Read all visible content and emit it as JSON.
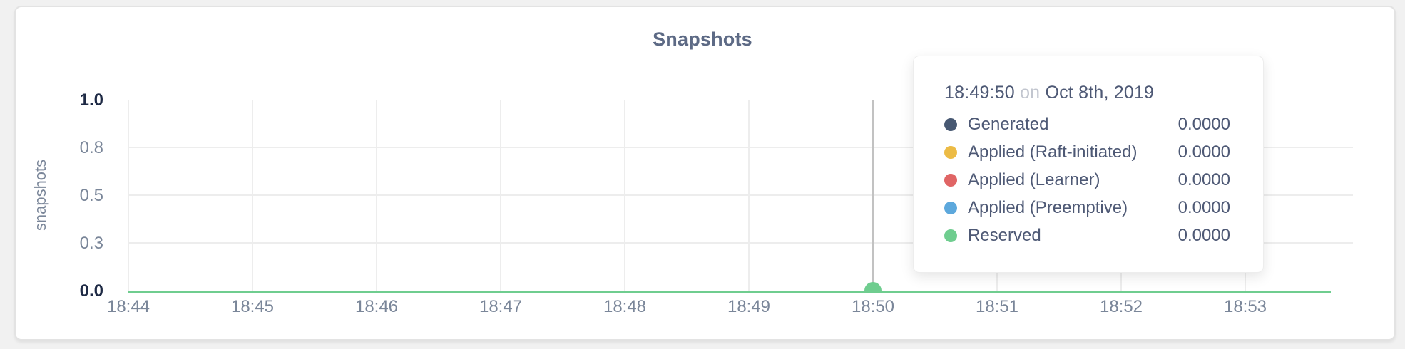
{
  "page": {
    "background_color": "#F1F1F1"
  },
  "chart_data": {
    "type": "line",
    "title": "Snapshots",
    "xlabel": "",
    "ylabel": "snapshots",
    "ylim": [
      0.0,
      1.0
    ],
    "grid": true,
    "x_tick_labels": [
      "18:44",
      "18:45",
      "18:46",
      "18:47",
      "18:48",
      "18:49",
      "18:50",
      "18:51",
      "18:52",
      "18:53"
    ],
    "y_ticks": [
      {
        "label": "1.0",
        "value": 1.0,
        "emphasis": true,
        "gridline": false
      },
      {
        "label": "0.8",
        "value": 0.75,
        "emphasis": false,
        "gridline": true
      },
      {
        "label": "0.5",
        "value": 0.5,
        "emphasis": false,
        "gridline": true
      },
      {
        "label": "0.3",
        "value": 0.25,
        "emphasis": false,
        "gridline": true
      },
      {
        "label": "0.0",
        "value": 0.0,
        "emphasis": true,
        "gridline": false
      }
    ],
    "series": [
      {
        "name": "Generated",
        "color": "#475872",
        "value": 0,
        "display_value": "0.0000"
      },
      {
        "name": "Applied (Raft-initiated)",
        "color": "#ECBB45",
        "value": 0,
        "display_value": "0.0000"
      },
      {
        "name": "Applied (Learner)",
        "color": "#E06565",
        "value": 0,
        "display_value": "0.0000"
      },
      {
        "name": "Applied (Preemptive)",
        "color": "#5DA8DC",
        "value": 0,
        "display_value": "0.0000"
      },
      {
        "name": "Reserved",
        "color": "#6FCD8F",
        "value": 0,
        "display_value": "0.0000"
      }
    ],
    "legend_position": "tooltip"
  },
  "tooltip": {
    "time": "18:49:50",
    "connector": "on",
    "date": "Oct 8th, 2019"
  },
  "hover": {
    "snap_label": "18:50",
    "point_color": "#6FCD8F",
    "guideline_color": "#C2C2C2"
  },
  "style_colors": {
    "title": "#5D6A85",
    "axis_text": "#7A8699",
    "axis_text_emphasis": "#1E2A45",
    "gridline": "#EDEDED"
  }
}
